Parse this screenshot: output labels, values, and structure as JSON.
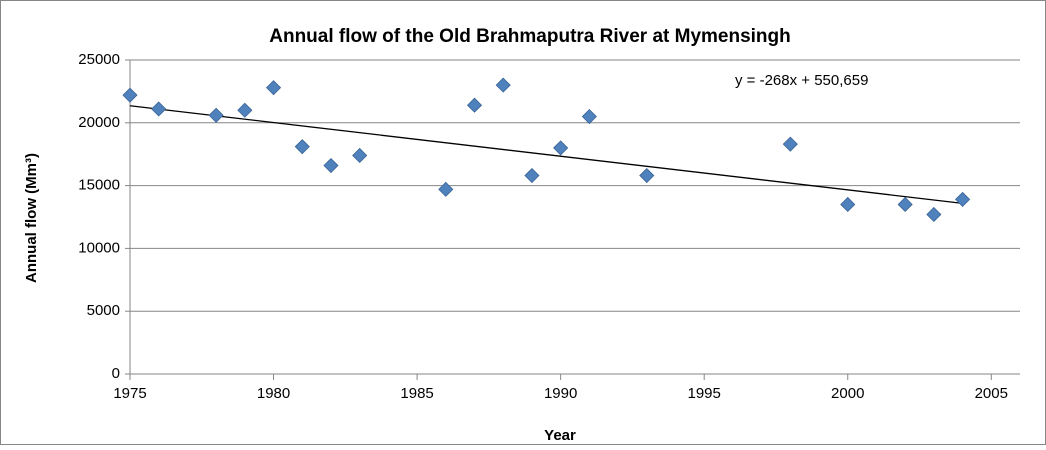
{
  "chart_data": {
    "type": "scatter",
    "title": "Annual flow of the Old Brahmaputra River at Mymensingh",
    "xlabel": "Year",
    "ylabel": "Annual flow (Mm³)",
    "series": [
      {
        "name": "Annual flow",
        "color": "#4f81bd",
        "x": [
          1975,
          1976,
          1978,
          1979,
          1980,
          1981,
          1982,
          1983,
          1986,
          1987,
          1988,
          1989,
          1990,
          1991,
          1993,
          1998,
          2000,
          2002,
          2003,
          2004
        ],
        "values": [
          22200,
          21100,
          20600,
          21000,
          22800,
          18100,
          16600,
          17400,
          14700,
          21400,
          23000,
          15800,
          18000,
          20500,
          15800,
          18300,
          13500,
          13500,
          12700,
          13900
        ]
      }
    ],
    "trendline": {
      "label": "y = -268x + 550,659",
      "slope": -268,
      "intercept": 550659,
      "color": "#000000"
    },
    "xlim": [
      1975,
      2006
    ],
    "xticks": [
      1975,
      1980,
      1985,
      1990,
      1995,
      2000,
      2005
    ],
    "ylim": [
      0,
      25000
    ],
    "yticks": [
      0,
      5000,
      10000,
      15000,
      20000,
      25000
    ],
    "grid": true
  }
}
